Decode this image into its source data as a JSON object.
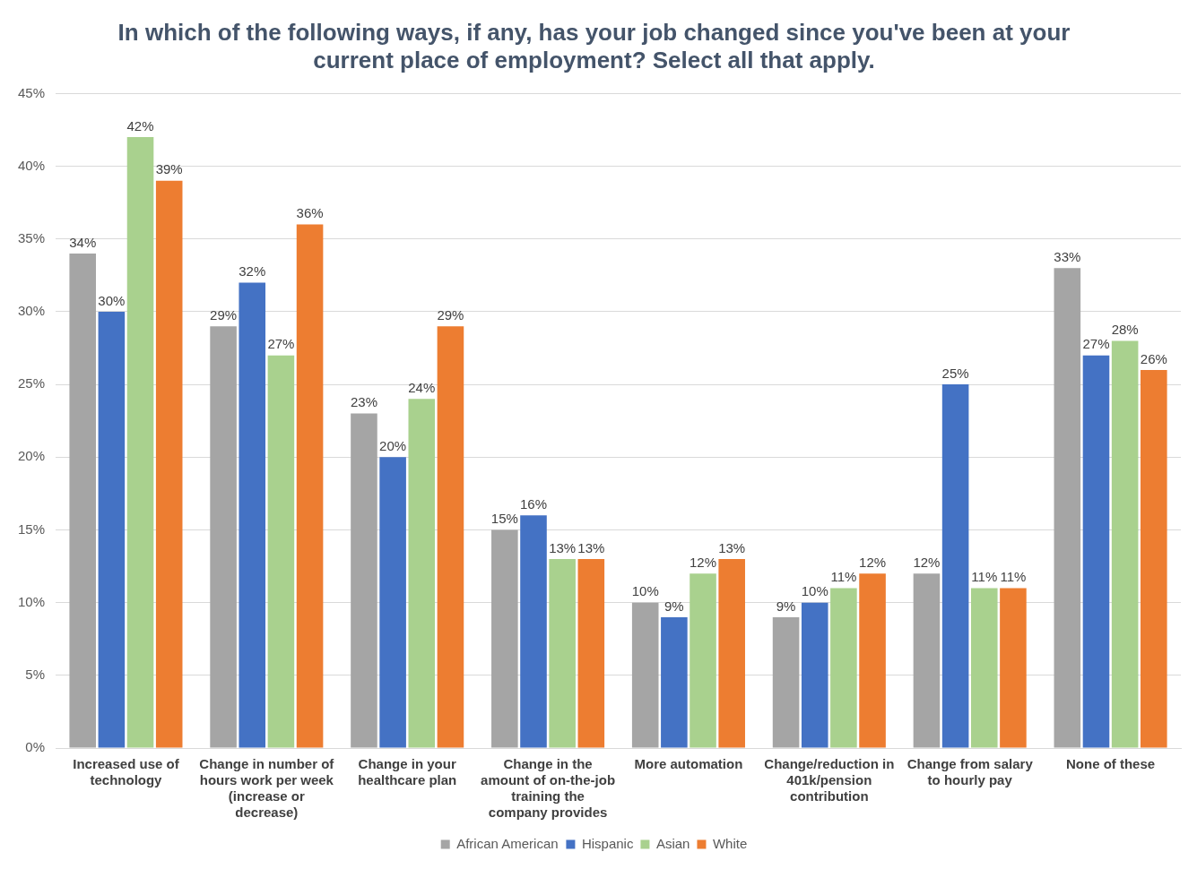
{
  "chart_data": {
    "type": "bar",
    "title": "In which of the following ways, if any, has your job changed since you've been at your current place of employment? Select all that apply.",
    "categories": [
      "Increased use of technology",
      "Change in number of hours work per week (increase or decrease)",
      "Change in your healthcare plan",
      "Change in the amount of on-the-job training the company provides",
      "More automation",
      "Change/reduction in 401k/pension contribution",
      "Change from salary to hourly pay",
      "None of these"
    ],
    "series": [
      {
        "name": "African American",
        "color": "#a5a5a5",
        "values": [
          34,
          29,
          23,
          15,
          10,
          9,
          12,
          33
        ],
        "value_labels": [
          "34%",
          "29%",
          "23%",
          "15%",
          "10%",
          "9%",
          "12%",
          "33%"
        ]
      },
      {
        "name": "Hispanic",
        "color": "#4472c4",
        "values": [
          30,
          32,
          20,
          16,
          9,
          10,
          25,
          27
        ],
        "value_labels": [
          "30%",
          "32%",
          "20%",
          "16%",
          "9%",
          "10%",
          "25%",
          "27%"
        ]
      },
      {
        "name": "Asian",
        "color": "#a9d18e",
        "values": [
          42,
          27,
          24,
          13,
          12,
          11,
          11,
          28
        ],
        "value_labels": [
          "42%",
          "27%",
          "24%",
          "13%",
          "12%",
          "11%",
          "11%",
          "28%"
        ]
      },
      {
        "name": "White",
        "color": "#ed7d31",
        "values": [
          39,
          36,
          29,
          13,
          13,
          12,
          11,
          26
        ],
        "value_labels": [
          "39%",
          "36%",
          "29%",
          "13%",
          "13%",
          "12%",
          "11%",
          "26%"
        ]
      }
    ],
    "ylim": [
      0,
      45
    ],
    "yticks": [
      {
        "value": 0,
        "label": "0%"
      },
      {
        "value": 5,
        "label": "5%"
      },
      {
        "value": 10,
        "label": "10%"
      },
      {
        "value": 15,
        "label": "15%"
      },
      {
        "value": 20,
        "label": "20%"
      },
      {
        "value": 25,
        "label": "25%"
      },
      {
        "value": 30,
        "label": "30%"
      },
      {
        "value": 35,
        "label": "35%"
      },
      {
        "value": 40,
        "label": "40%"
      },
      {
        "value": 45,
        "label": "45%"
      }
    ],
    "grid": "y",
    "legend": "bottom"
  }
}
